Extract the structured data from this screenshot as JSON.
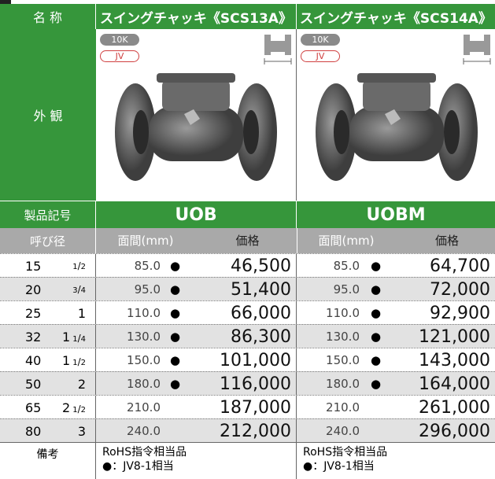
{
  "header": {
    "name_label": "名 称",
    "products": [
      "スイングチャッキ《SCS13A》",
      "スイングチャッキ《SCS14A》"
    ]
  },
  "appearance": {
    "label": "外 観",
    "badges": [
      [
        "10K",
        "JV"
      ],
      [
        "10K",
        "JV"
      ]
    ]
  },
  "code_row": {
    "label": "製品記号",
    "codes": [
      "UOB",
      "UOBM"
    ]
  },
  "column_header": {
    "size": "呼び径",
    "face": [
      "面間(mm)",
      "面間(mm)"
    ],
    "price": [
      "価格",
      "価格"
    ]
  },
  "rows": [
    {
      "size": "15",
      "inch": {
        "num": "1",
        "den": "2"
      },
      "products": [
        {
          "face": "85.0",
          "mark": "●",
          "price": "46,500"
        },
        {
          "face": "85.0",
          "mark": "●",
          "price": "64,700"
        }
      ]
    },
    {
      "size": "20",
      "inch": {
        "num": "3",
        "den": "4"
      },
      "products": [
        {
          "face": "95.0",
          "mark": "●",
          "price": "51,400"
        },
        {
          "face": "95.0",
          "mark": "●",
          "price": "72,000"
        }
      ]
    },
    {
      "size": "25",
      "inch": {
        "whole": "1"
      },
      "products": [
        {
          "face": "110.0",
          "mark": "●",
          "price": "66,000"
        },
        {
          "face": "110.0",
          "mark": "●",
          "price": "92,900"
        }
      ]
    },
    {
      "size": "32",
      "inch": {
        "whole": "1",
        "num": "1",
        "den": "4"
      },
      "products": [
        {
          "face": "130.0",
          "mark": "●",
          "price": "86,300"
        },
        {
          "face": "130.0",
          "mark": "●",
          "price": "121,000"
        }
      ]
    },
    {
      "size": "40",
      "inch": {
        "whole": "1",
        "num": "1",
        "den": "2"
      },
      "products": [
        {
          "face": "150.0",
          "mark": "●",
          "price": "101,000"
        },
        {
          "face": "150.0",
          "mark": "●",
          "price": "143,000"
        }
      ]
    },
    {
      "size": "50",
      "inch": {
        "whole": "2"
      },
      "products": [
        {
          "face": "180.0",
          "mark": "●",
          "price": "116,000"
        },
        {
          "face": "180.0",
          "mark": "●",
          "price": "164,000"
        }
      ]
    },
    {
      "size": "65",
      "inch": {
        "whole": "2",
        "num": "1",
        "den": "2"
      },
      "products": [
        {
          "face": "210.0",
          "price": "187,000"
        },
        {
          "face": "210.0",
          "price": "261,000"
        }
      ]
    },
    {
      "size": "80",
      "inch": {
        "whole": "3"
      },
      "products": [
        {
          "face": "240.0",
          "price": "212,000"
        },
        {
          "face": "240.0",
          "price": "296,000"
        }
      ]
    }
  ],
  "remarks": {
    "label": "備考",
    "notes": [
      [
        "RoHS指令相当品",
        "●：JV8-1相当"
      ],
      [
        "RoHS指令相当品",
        "●：JV8-1相当"
      ]
    ]
  }
}
